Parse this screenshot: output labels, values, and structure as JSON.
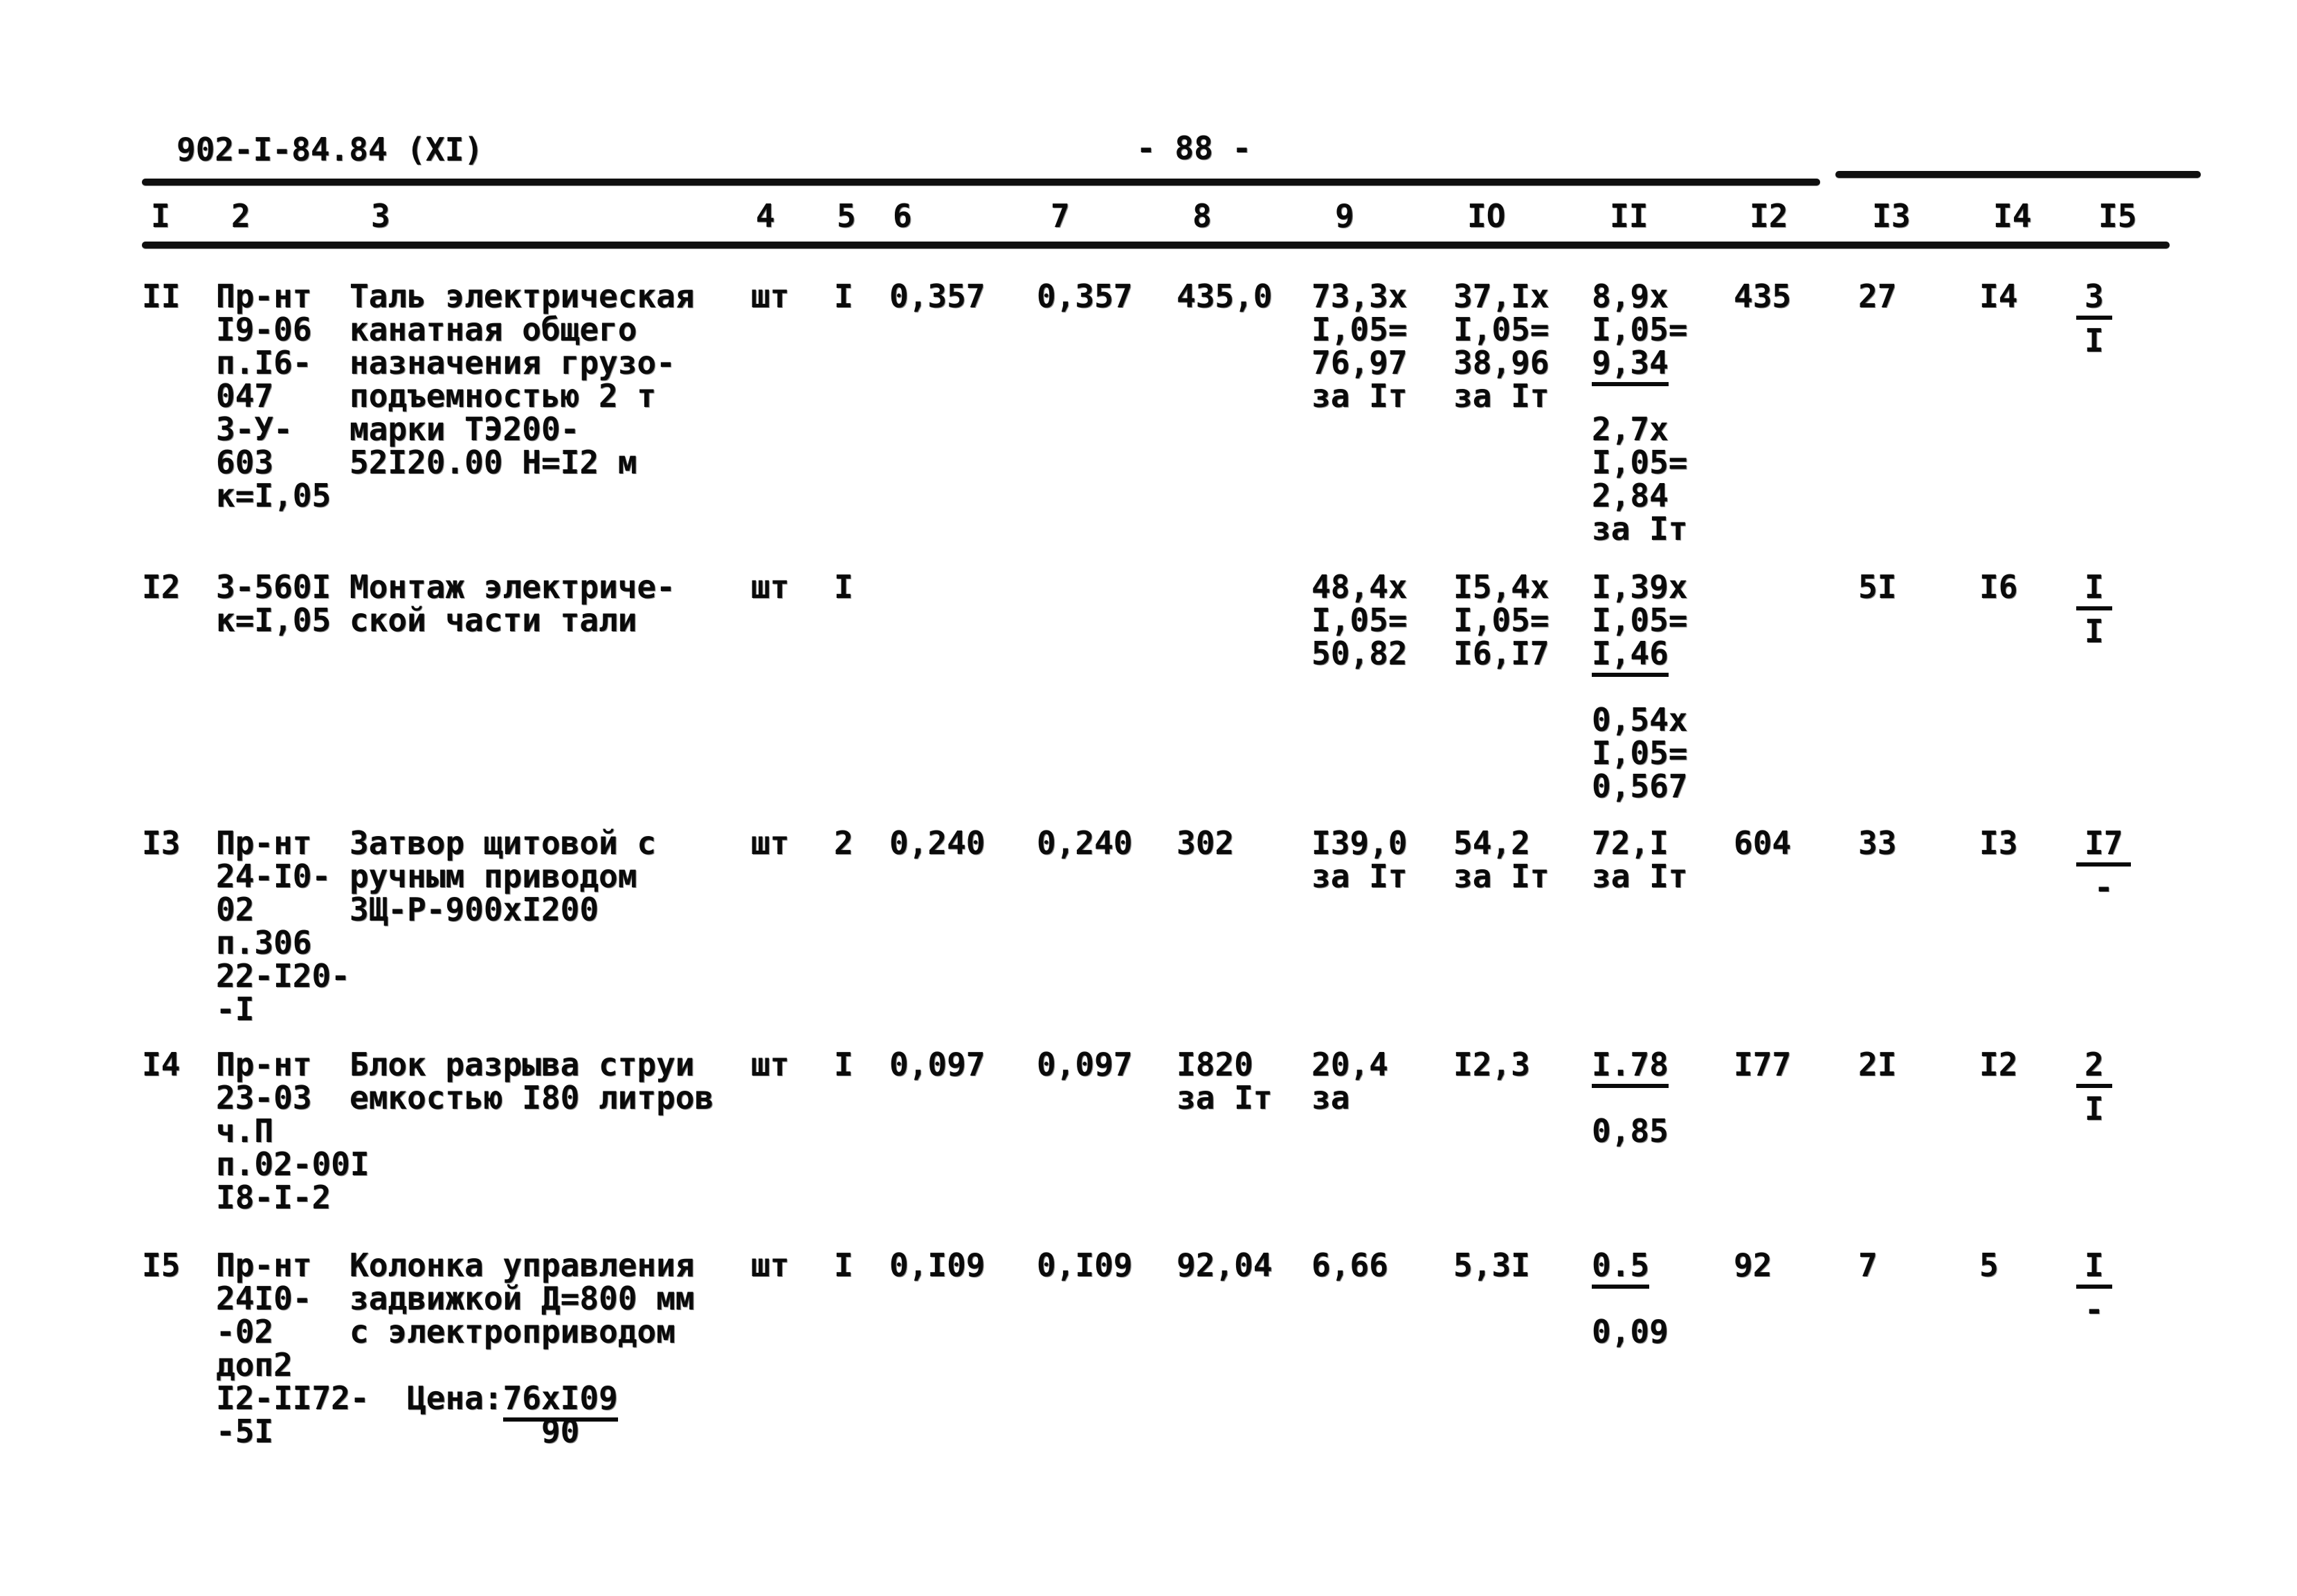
{
  "header": {
    "doc_code": "902-I-84.84 (XI)",
    "page_number": "- 88 -"
  },
  "columns": {
    "labels": [
      "I",
      "2",
      "3",
      "4",
      "5",
      "6",
      "7",
      "8",
      "9",
      "IO",
      "II",
      "I2",
      "I3",
      "I4",
      "I5"
    ]
  },
  "table": {
    "rows": [
      {
        "num": "II",
        "cells": {
          "1": [
            "II"
          ],
          "2": [
            "Пр-нт",
            "I9-06",
            "п.I6-",
            "047",
            "3-У-",
            "603",
            "к=I,05"
          ],
          "3": [
            "Таль электрическая",
            "канатная общего",
            "назначения грузо-",
            "подъемностью 2 т",
            "марки ТЭ200-",
            "52I20.00 Н=I2 м"
          ],
          "4": [
            "шт"
          ],
          "5": [
            "I"
          ],
          "6": [
            "0,357"
          ],
          "7": [
            "0,357"
          ],
          "8": [
            "435,0"
          ],
          "9": [
            "73,3х",
            "I,05=",
            "76,97",
            "за Iт"
          ],
          "10": [
            "37,Iх",
            "I,05=",
            "38,96",
            "за Iт"
          ],
          "11": [
            "8,9х",
            "I,05=",
            {
              "u": "9,34"
            },
            "",
            "2,7х",
            "I,05=",
            "2,84",
            "за Iт"
          ],
          "12": [
            "435"
          ],
          "13": [
            "27"
          ],
          "14": [
            "I4"
          ],
          "15": [
            {
              "frac": {
                "n": "3",
                "d": "I"
              }
            }
          ]
        }
      },
      {
        "num": "I2",
        "cells": {
          "1": [
            "I2"
          ],
          "2": [
            "3-560I",
            "к=I,05"
          ],
          "3": [
            "Монтаж электриче-",
            "ской части тали"
          ],
          "4": [
            "шт"
          ],
          "5": [
            "I"
          ],
          "9": [
            "48,4х",
            "I,05=",
            "50,82"
          ],
          "10": [
            "I5,4х",
            "I,05=",
            "I6,I7"
          ],
          "11": [
            "I,39х",
            "I,05=",
            {
              "u": "I,46"
            },
            "",
            "0,54х",
            "I,05=",
            "0,567"
          ],
          "13": [
            "5I"
          ],
          "14": [
            "I6"
          ],
          "15": [
            {
              "frac": {
                "n": "I",
                "d": "I"
              }
            }
          ]
        }
      },
      {
        "num": "I3",
        "cells": {
          "1": [
            "I3"
          ],
          "2": [
            "Пр-нт",
            "24-I0-",
            "02",
            "п.306",
            "22-I20-",
            "-I"
          ],
          "3": [
            "Затвор щитовой с",
            "ручным приводом",
            "ЗЩ-Р-900хI200"
          ],
          "4": [
            "шт"
          ],
          "5": [
            "2"
          ],
          "6": [
            "0,240"
          ],
          "7": [
            "0,240"
          ],
          "8": [
            "302"
          ],
          "9": [
            "I39,0",
            "за Iт"
          ],
          "10": [
            "54,2",
            "за Iт"
          ],
          "11": [
            "72,I",
            "за Iт"
          ],
          "12": [
            "604"
          ],
          "13": [
            "33"
          ],
          "14": [
            "I3"
          ],
          "15": [
            {
              "frac": {
                "n": "I7",
                "d": "-"
              }
            }
          ]
        }
      },
      {
        "num": "I4",
        "cells": {
          "1": [
            "I4"
          ],
          "2": [
            "Пр-нт",
            "23-03",
            "ч.П",
            "п.02-00I",
            "I8-I-2"
          ],
          "3": [
            "Блок разрыва струи",
            "емкостью I80 литров"
          ],
          "4": [
            "шт"
          ],
          "5": [
            "I"
          ],
          "6": [
            "0,097"
          ],
          "7": [
            "0,097"
          ],
          "8": [
            "I820",
            "за Iт"
          ],
          "9": [
            "20,4",
            "за"
          ],
          "10": [
            "I2,3"
          ],
          "11": [
            {
              "u": "I.78"
            },
            "",
            "0,85"
          ],
          "12": [
            "I77"
          ],
          "13": [
            "2I"
          ],
          "14": [
            "I2"
          ],
          "15": [
            {
              "frac": {
                "n": "2",
                "d": "I"
              }
            }
          ]
        }
      },
      {
        "num": "I5",
        "cells": {
          "1": [
            "I5"
          ],
          "2": [
            "Пр-нт",
            "24I0-",
            "-02",
            "доп2",
            "I2-II72-",
            "-5I"
          ],
          "3": [
            "Колонка управления",
            "задвижкой Д=800 мм",
            "с электроприводом",
            "",
            {
              "seg": [
                "   Цена:",
                {
                  "u": "76хI09"
                }
              ]
            },
            "          90"
          ],
          "4": [
            "шт"
          ],
          "5": [
            "I"
          ],
          "6": [
            "0,I09"
          ],
          "7": [
            "0,I09"
          ],
          "8": [
            "92,04"
          ],
          "9": [
            "6,66"
          ],
          "10": [
            "5,3I"
          ],
          "11": [
            {
              "u": "0.5"
            },
            "",
            "0,09"
          ],
          "12": [
            "92"
          ],
          "13": [
            "7"
          ],
          "14": [
            "5"
          ],
          "15": [
            {
              "frac": {
                "n": "I",
                "d": "-"
              }
            }
          ]
        }
      }
    ]
  }
}
